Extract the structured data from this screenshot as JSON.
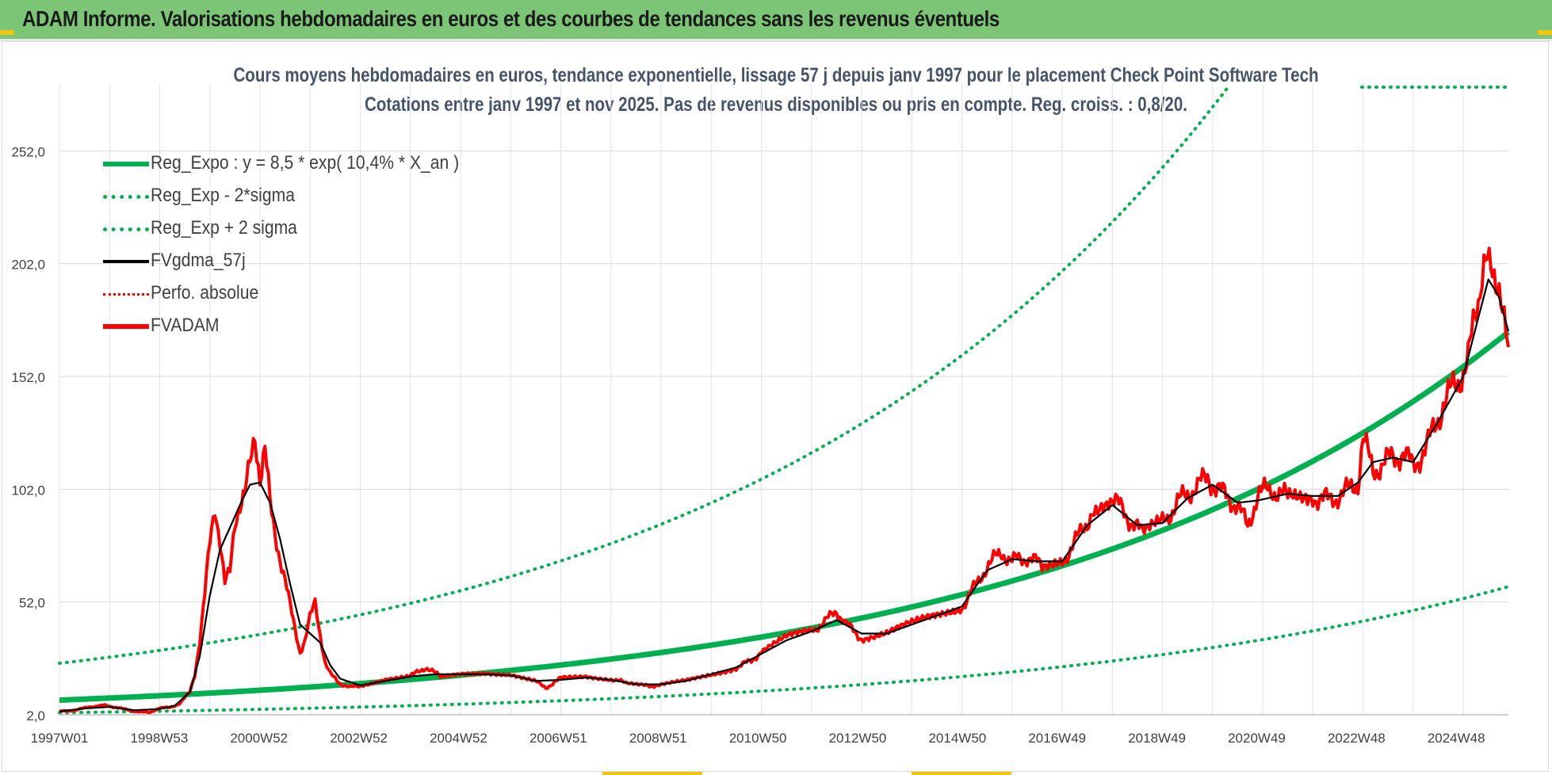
{
  "header": {
    "title": "ADAM Informe. Valorisations hebdomadaires en euros et des courbes de tendances sans les revenus éventuels"
  },
  "colors": {
    "header_bg": "#7cc576",
    "trend": "#00b050",
    "smooth": "#000000",
    "price": "#ff0000",
    "text": "#44546a"
  },
  "chart_data": {
    "type": "line",
    "title": "Cours moyens hebdomadaires en euros, tendance exponentielle, lissage 57 j depuis janv 1997  pour le placement Check Point Software Tech",
    "subtitle": "Cotations entre janv 1997 et nov 2025. Pas de revenus disponibles ou pris en compte. Reg. croiss. : 0,8/20.",
    "ylim": [
      2,
      282
    ],
    "y_ticks": [
      "2,0",
      "52,0",
      "102,0",
      "152,0",
      "202,0",
      "252,0"
    ],
    "x_ticks": [
      "1997W01",
      "1998W53",
      "2000W52",
      "2002W52",
      "2004W52",
      "2006W51",
      "2008W51",
      "2010W50",
      "2012W50",
      "2014W50",
      "2016W49",
      "2018W49",
      "2020W49",
      "2022W48",
      "2024W48"
    ],
    "x_range": [
      1997.0,
      2025.9
    ],
    "grid": true,
    "legend_position": "top-left",
    "legend": [
      "Reg_Expo : y = 8,5 * exp( 10,4% *  X_an )",
      "Reg_Exp - 2*sigma",
      "Reg_Exp + 2 sigma",
      "FVgdma_57j",
      "Perfo. absolue",
      "FVADAM"
    ],
    "regression": {
      "a": 8.5,
      "rate": 0.104,
      "start_year": 1997.0,
      "sigma_factor": 2.92
    },
    "series": [
      {
        "name": "FVADAM",
        "points": [
          [
            1997.0,
            3.5
          ],
          [
            1997.3,
            4.0
          ],
          [
            1997.6,
            5.5
          ],
          [
            1997.9,
            6.2
          ],
          [
            1998.2,
            5.0
          ],
          [
            1998.5,
            3.5
          ],
          [
            1998.8,
            3.0
          ],
          [
            1999.0,
            5.0
          ],
          [
            1999.2,
            5.2
          ],
          [
            1999.4,
            7.0
          ],
          [
            1999.6,
            12
          ],
          [
            1999.7,
            20
          ],
          [
            1999.8,
            35
          ],
          [
            1999.9,
            55
          ],
          [
            2000.0,
            78
          ],
          [
            2000.1,
            95
          ],
          [
            2000.2,
            80
          ],
          [
            2000.3,
            60
          ],
          [
            2000.4,
            65
          ],
          [
            2000.5,
            88
          ],
          [
            2000.6,
            96
          ],
          [
            2000.7,
            100
          ],
          [
            2000.8,
            112
          ],
          [
            2000.9,
            126
          ],
          [
            2001.0,
            108
          ],
          [
            2001.1,
            120
          ],
          [
            2001.2,
            95
          ],
          [
            2001.3,
            82
          ],
          [
            2001.4,
            72
          ],
          [
            2001.5,
            62
          ],
          [
            2001.6,
            50
          ],
          [
            2001.7,
            40
          ],
          [
            2001.8,
            30
          ],
          [
            2001.9,
            35
          ],
          [
            2002.0,
            45
          ],
          [
            2002.1,
            52
          ],
          [
            2002.2,
            38
          ],
          [
            2002.3,
            25
          ],
          [
            2002.4,
            20
          ],
          [
            2002.6,
            16
          ],
          [
            2002.8,
            14
          ],
          [
            2003.0,
            15
          ],
          [
            2003.5,
            18
          ],
          [
            2004.0,
            19
          ],
          [
            2004.3,
            23
          ],
          [
            2004.6,
            19
          ],
          [
            2005.0,
            20
          ],
          [
            2005.5,
            21
          ],
          [
            2006.0,
            20
          ],
          [
            2006.4,
            18
          ],
          [
            2006.7,
            14
          ],
          [
            2007.0,
            18
          ],
          [
            2007.5,
            19
          ],
          [
            2008.0,
            18
          ],
          [
            2008.3,
            16
          ],
          [
            2008.7,
            15
          ],
          [
            2009.0,
            15
          ],
          [
            2009.5,
            17
          ],
          [
            2010.0,
            20
          ],
          [
            2010.5,
            23
          ],
          [
            2010.8,
            26
          ],
          [
            2011.0,
            30
          ],
          [
            2011.5,
            36
          ],
          [
            2012.0,
            39
          ],
          [
            2012.3,
            44
          ],
          [
            2012.5,
            48
          ],
          [
            2012.7,
            42
          ],
          [
            2013.0,
            36
          ],
          [
            2013.5,
            38
          ],
          [
            2014.0,
            42
          ],
          [
            2014.5,
            46
          ],
          [
            2015.0,
            50
          ],
          [
            2015.3,
            60
          ],
          [
            2015.5,
            68
          ],
          [
            2015.8,
            74
          ],
          [
            2016.0,
            70
          ],
          [
            2016.3,
            72
          ],
          [
            2016.6,
            68
          ],
          [
            2017.0,
            70
          ],
          [
            2017.3,
            80
          ],
          [
            2017.6,
            92
          ],
          [
            2018.0,
            98
          ],
          [
            2018.3,
            90
          ],
          [
            2018.6,
            82
          ],
          [
            2019.0,
            87
          ],
          [
            2019.3,
            96
          ],
          [
            2019.6,
            102
          ],
          [
            2019.9,
            107
          ],
          [
            2020.2,
            100
          ],
          [
            2020.5,
            95
          ],
          [
            2020.7,
            85
          ],
          [
            2020.9,
            100
          ],
          [
            2021.2,
            102
          ],
          [
            2021.5,
            98
          ],
          [
            2022.0,
            99
          ],
          [
            2022.3,
            97
          ],
          [
            2022.6,
            100
          ],
          [
            2022.9,
            105
          ],
          [
            2023.0,
            125
          ],
          [
            2023.2,
            110
          ],
          [
            2023.5,
            115
          ],
          [
            2023.8,
            118
          ],
          [
            2024.0,
            112
          ],
          [
            2024.3,
            122
          ],
          [
            2024.6,
            140
          ],
          [
            2024.9,
            150
          ],
          [
            2025.1,
            160
          ],
          [
            2025.3,
            185
          ],
          [
            2025.45,
            205
          ],
          [
            2025.55,
            210
          ],
          [
            2025.65,
            195
          ],
          [
            2025.75,
            180
          ],
          [
            2025.85,
            170
          ],
          [
            2025.9,
            165
          ]
        ]
      },
      {
        "name": "FVgdma_57j",
        "points": [
          [
            1997.0,
            3.5
          ],
          [
            1997.5,
            4.8
          ],
          [
            1998.0,
            5.5
          ],
          [
            1998.5,
            4.0
          ],
          [
            1999.0,
            4.6
          ],
          [
            1999.3,
            6.0
          ],
          [
            1999.6,
            12
          ],
          [
            1999.8,
            28
          ],
          [
            2000.0,
            55
          ],
          [
            2000.2,
            75
          ],
          [
            2000.4,
            85
          ],
          [
            2000.6,
            95
          ],
          [
            2000.8,
            104
          ],
          [
            2001.0,
            105
          ],
          [
            2001.2,
            96
          ],
          [
            2001.4,
            80
          ],
          [
            2001.6,
            60
          ],
          [
            2001.8,
            42
          ],
          [
            2002.0,
            38
          ],
          [
            2002.2,
            34
          ],
          [
            2002.4,
            24
          ],
          [
            2002.6,
            18
          ],
          [
            2003.0,
            15
          ],
          [
            2003.5,
            17
          ],
          [
            2004.0,
            19
          ],
          [
            2004.5,
            20
          ],
          [
            2005.0,
            20
          ],
          [
            2005.5,
            20
          ],
          [
            2006.0,
            19.5
          ],
          [
            2006.5,
            17
          ],
          [
            2007.0,
            17.5
          ],
          [
            2007.5,
            18.5
          ],
          [
            2008.0,
            17.5
          ],
          [
            2008.5,
            15.5
          ],
          [
            2009.0,
            15.5
          ],
          [
            2009.5,
            17
          ],
          [
            2010.0,
            20
          ],
          [
            2010.5,
            23
          ],
          [
            2011.0,
            29
          ],
          [
            2011.5,
            35
          ],
          [
            2012.0,
            39
          ],
          [
            2012.5,
            44
          ],
          [
            2013.0,
            38
          ],
          [
            2013.5,
            38
          ],
          [
            2014.0,
            42
          ],
          [
            2014.5,
            46
          ],
          [
            2015.0,
            50
          ],
          [
            2015.5,
            66
          ],
          [
            2016.0,
            71
          ],
          [
            2016.5,
            70
          ],
          [
            2017.0,
            70
          ],
          [
            2017.5,
            86
          ],
          [
            2018.0,
            95
          ],
          [
            2018.5,
            86
          ],
          [
            2019.0,
            87
          ],
          [
            2019.5,
            98
          ],
          [
            2020.0,
            104
          ],
          [
            2020.5,
            96
          ],
          [
            2020.9,
            97
          ],
          [
            2021.5,
            100
          ],
          [
            2022.0,
            99
          ],
          [
            2022.5,
            99
          ],
          [
            2022.9,
            105
          ],
          [
            2023.2,
            114
          ],
          [
            2023.6,
            116
          ],
          [
            2024.0,
            114
          ],
          [
            2024.5,
            132
          ],
          [
            2025.0,
            152
          ],
          [
            2025.3,
            178
          ],
          [
            2025.5,
            195
          ],
          [
            2025.7,
            188
          ],
          [
            2025.9,
            172
          ]
        ]
      }
    ]
  }
}
